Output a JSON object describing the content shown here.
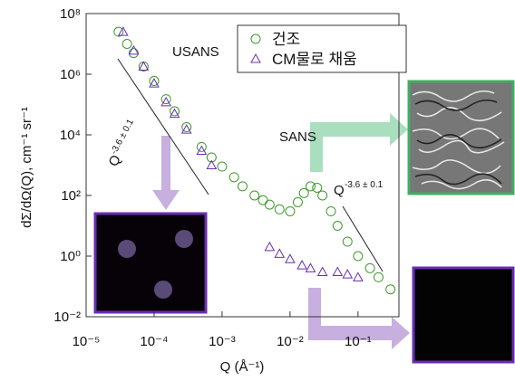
{
  "chart_data": {
    "type": "scatter",
    "xlabel": "Q (Å⁻¹)",
    "ylabel": "dΣ/dΩ(Q), cm⁻¹ sr⁻¹",
    "log_x": true,
    "log_y": true,
    "xlim": [
      1e-05,
      0.4
    ],
    "ylim": [
      0.01,
      100000000
    ],
    "xticks": [
      {
        "value": 1e-05,
        "label": "10⁻⁵"
      },
      {
        "value": 0.0001,
        "label": "10⁻⁴"
      },
      {
        "value": 0.001,
        "label": "10⁻³"
      },
      {
        "value": 0.01,
        "label": "10⁻²"
      },
      {
        "value": 0.1,
        "label": "10⁻¹"
      }
    ],
    "yticks": [
      {
        "value": 0.01,
        "label": "10⁻²"
      },
      {
        "value": 1,
        "label": "10⁰"
      },
      {
        "value": 100,
        "label": "10²"
      },
      {
        "value": 10000,
        "label": "10⁴"
      },
      {
        "value": 1000000,
        "label": "10⁶"
      },
      {
        "value": 100000000,
        "label": "10⁸"
      }
    ],
    "legend": "upper right",
    "annotations": [
      {
        "text": "USANS"
      },
      {
        "text": "SANS"
      },
      {
        "text": "Q",
        "sup": "-3.6 ± 0.1"
      },
      {
        "text": "Q",
        "sup": "-3.6 ± 0.1"
      }
    ],
    "series": [
      {
        "name": "건조",
        "color": "#3f9a2c",
        "marker": "circle",
        "x": [
          3e-05,
          4e-05,
          5e-05,
          7e-05,
          0.0001,
          0.00015,
          0.0002,
          0.0003,
          0.0005,
          0.0007,
          0.001,
          0.0015,
          0.002,
          0.003,
          0.004,
          0.005,
          0.007,
          0.01,
          0.013,
          0.016,
          0.02,
          0.025,
          0.03,
          0.04,
          0.05,
          0.07,
          0.1,
          0.15,
          0.2,
          0.3
        ],
        "values": [
          25000000,
          10000000,
          5000000,
          1800000,
          600000,
          150000,
          60000,
          18000,
          4000,
          1800,
          900,
          400,
          200,
          100,
          70,
          50,
          35,
          30,
          60,
          120,
          200,
          180,
          100,
          30,
          10,
          3,
          1,
          0.4,
          0.2,
          0.08
        ]
      },
      {
        "name": "CM물로 채움",
        "color": "#6a2db4",
        "marker": "triangle",
        "x": [
          3.5e-05,
          5e-05,
          7e-05,
          0.0001,
          0.00015,
          0.0002,
          0.0003,
          0.0005,
          0.0007,
          0.005,
          0.007,
          0.01,
          0.015,
          0.02,
          0.03,
          0.05,
          0.07,
          0.1
        ],
        "values": [
          25000000,
          6000000,
          1800000,
          500000,
          120000,
          50000,
          15000,
          3000,
          1000,
          2,
          1.2,
          0.8,
          0.5,
          0.4,
          0.3,
          0.3,
          0.25,
          0.2
        ]
      }
    ]
  }
}
